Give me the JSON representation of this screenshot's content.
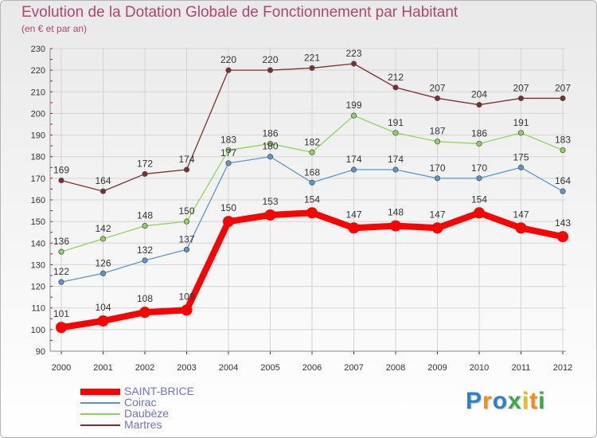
{
  "title": "Evolution de la Dotation Globale de Fonctionnement par Habitant",
  "subtitle": "(en € et par an)",
  "logo": {
    "text": "Proxiti",
    "colors": [
      "#2f7fd0",
      "#f08c1e",
      "#3aa845",
      "#e8bd1c"
    ]
  },
  "chart_data": {
    "type": "line",
    "title": "Evolution de la Dotation Globale de Fonctionnement par Habitant",
    "subtitle": "(en € et par an)",
    "xlabel": "",
    "ylabel": "",
    "x": [
      "2000",
      "2001",
      "2002",
      "2003",
      "2004",
      "2005",
      "2006",
      "2007",
      "2008",
      "2009",
      "2010",
      "2011",
      "2012"
    ],
    "ylim": [
      90,
      230
    ],
    "yticks": [
      90,
      100,
      110,
      120,
      130,
      140,
      150,
      160,
      170,
      180,
      190,
      200,
      210,
      220,
      230
    ],
    "grid": true,
    "legend_position": "bottom-left",
    "series": [
      {
        "name": "Martres",
        "color": "#7b2d32",
        "values": [
          169,
          164,
          172,
          174,
          220,
          220,
          221,
          223,
          212,
          207,
          204,
          207,
          207
        ]
      },
      {
        "name": "Daubèze",
        "color": "#8fd460",
        "values": [
          136,
          142,
          148,
          150,
          183,
          186,
          182,
          199,
          191,
          187,
          186,
          191,
          183
        ]
      },
      {
        "name": "Coirac",
        "color": "#5a97d0",
        "values": [
          122,
          126,
          132,
          137,
          177,
          180,
          168,
          174,
          174,
          170,
          170,
          175,
          164
        ]
      },
      {
        "name": "SAINT-BRICE",
        "color": "#ff0000",
        "values": [
          101,
          104,
          108,
          109,
          150,
          153,
          154,
          147,
          148,
          147,
          154,
          147,
          143
        ]
      }
    ]
  }
}
